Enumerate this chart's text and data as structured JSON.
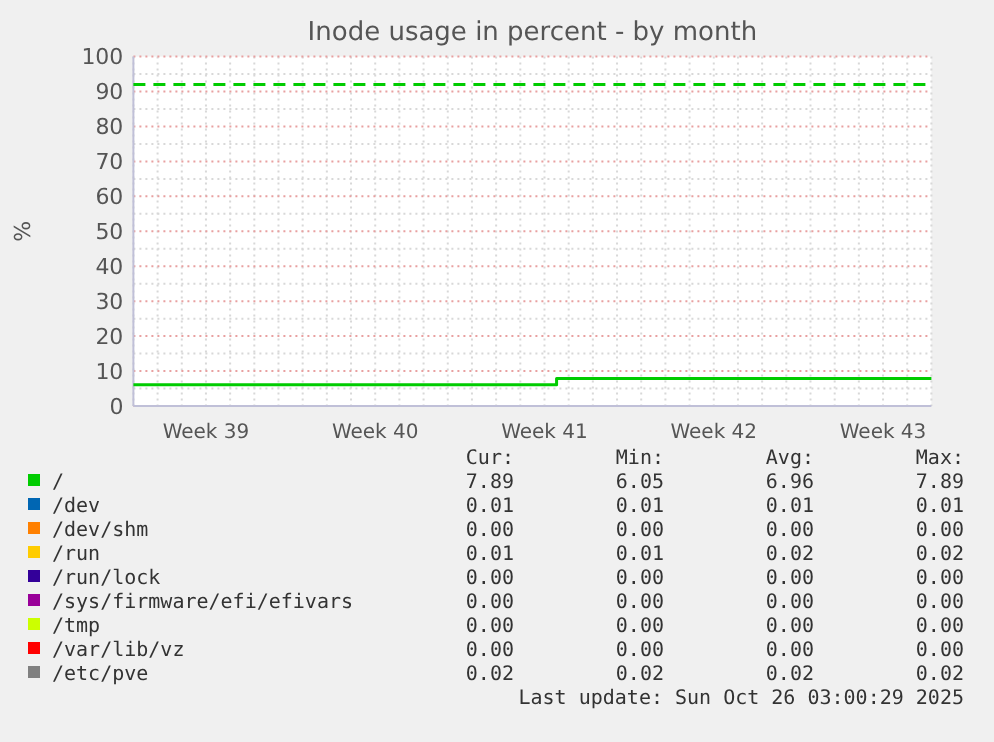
{
  "chart_data": {
    "type": "step",
    "title": "Inode usage in percent - by month",
    "ylabel": "%",
    "categories": [
      null,
      null,
      null,
      "Week 39",
      null,
      null,
      null,
      null,
      null,
      null,
      "Week 40",
      null,
      null,
      null,
      null,
      null,
      null,
      "Week 41",
      null,
      null,
      null,
      null,
      null,
      null,
      "Week 42",
      null,
      null,
      null,
      null,
      null,
      null,
      "Week 43",
      null,
      null
    ],
    "ylim": [
      0,
      100
    ],
    "yticks": [
      0,
      10,
      20,
      30,
      40,
      50,
      60,
      70,
      80,
      90,
      100
    ],
    "grid": true,
    "legend": "bottom",
    "marker": "none",
    "line_style": "solid",
    "series": [
      {
        "name": "/",
        "color": "#00cc00",
        "values": [
          6.05,
          6.05,
          6.05,
          6.05,
          6.05,
          6.05,
          6.05,
          6.05,
          6.05,
          6.05,
          6.05,
          6.05,
          6.05,
          6.05,
          6.05,
          6.05,
          6.05,
          6.05,
          7.89,
          7.89,
          7.89,
          7.89,
          7.89,
          7.89,
          7.89,
          7.89,
          7.89,
          7.89,
          7.89,
          7.89,
          7.89,
          7.89,
          7.89,
          7.89
        ]
      },
      {
        "name": "/dev",
        "color": "#0066b3",
        "values": [
          null,
          null,
          null,
          null,
          null,
          null,
          null,
          null,
          null,
          null,
          null,
          null,
          null,
          null,
          null,
          null,
          null,
          null,
          null,
          null,
          null,
          null,
          null,
          null,
          null,
          null,
          null,
          null,
          null,
          null,
          null,
          null,
          null,
          null
        ]
      },
      {
        "name": "/dev/shm",
        "color": "#ff8000",
        "values": [
          null,
          null,
          null,
          null,
          null,
          null,
          null,
          null,
          null,
          null,
          null,
          null,
          null,
          null,
          null,
          null,
          null,
          null,
          null,
          null,
          null,
          null,
          null,
          null,
          null,
          null,
          null,
          null,
          null,
          null,
          null,
          null,
          null,
          null
        ]
      },
      {
        "name": "/run",
        "color": "#ffcc00",
        "values": [
          null,
          null,
          null,
          null,
          null,
          null,
          null,
          null,
          null,
          null,
          null,
          null,
          null,
          null,
          null,
          null,
          null,
          null,
          null,
          null,
          null,
          null,
          null,
          null,
          null,
          null,
          null,
          null,
          null,
          null,
          null,
          null,
          null,
          null
        ]
      },
      {
        "name": "/run/lock",
        "color": "#330099",
        "values": [
          null,
          null,
          null,
          null,
          null,
          null,
          null,
          null,
          null,
          null,
          null,
          null,
          null,
          null,
          null,
          null,
          null,
          null,
          null,
          null,
          null,
          null,
          null,
          null,
          null,
          null,
          null,
          null,
          null,
          null,
          null,
          null,
          null,
          null
        ]
      },
      {
        "name": "/sys/firmware/efi/efivars",
        "color": "#990099",
        "values": [
          null,
          null,
          null,
          null,
          null,
          null,
          null,
          null,
          null,
          null,
          null,
          null,
          null,
          null,
          null,
          null,
          null,
          null,
          null,
          null,
          null,
          null,
          null,
          null,
          null,
          null,
          null,
          null,
          null,
          null,
          null,
          null,
          null,
          null
        ]
      },
      {
        "name": "/tmp",
        "color": "#ccff00",
        "values": [
          null,
          null,
          null,
          null,
          null,
          null,
          null,
          null,
          null,
          null,
          null,
          null,
          null,
          null,
          null,
          null,
          null,
          null,
          null,
          null,
          null,
          null,
          null,
          null,
          null,
          null,
          null,
          null,
          null,
          null,
          null,
          null,
          null,
          null
        ]
      },
      {
        "name": "/var/lib/vz",
        "color": "#ff0000",
        "values": [
          null,
          null,
          null,
          null,
          null,
          null,
          null,
          null,
          null,
          null,
          null,
          null,
          null,
          null,
          null,
          null,
          null,
          null,
          null,
          null,
          null,
          null,
          null,
          null,
          null,
          null,
          null,
          null,
          null,
          null,
          null,
          null,
          null,
          null
        ]
      },
      {
        "name": "/etc/pve",
        "color": "#808080",
        "values": [
          null,
          null,
          null,
          null,
          null,
          null,
          null,
          null,
          null,
          null,
          null,
          null,
          null,
          null,
          null,
          null,
          null,
          null,
          null,
          null,
          null,
          null,
          null,
          null,
          null,
          null,
          null,
          null,
          null,
          null,
          null,
          null,
          null,
          null
        ]
      }
    ],
    "ref_lines": [
      {
        "axis": "y",
        "value": 92,
        "color": "#00cc00",
        "line_style": "dashed"
      }
    ],
    "annotations": [
      "Cur:",
      "Min:",
      "Avg:",
      "Max:",
      "7.89",
      "6.05",
      "6.96",
      "7.89",
      "0.01",
      "0.01",
      "0.01",
      "0.01",
      "0.00",
      "0.00",
      "0.00",
      "0.00",
      "0.01",
      "0.01",
      "0.02",
      "0.02",
      "0.00",
      "0.00",
      "0.00",
      "0.00",
      "0.00",
      "0.00",
      "0.00",
      "0.00",
      "0.00",
      "0.00",
      "0.00",
      "0.00",
      "0.00",
      "0.00",
      "0.00",
      "0.00",
      "0.02",
      "0.02",
      "0.02",
      "0.02",
      "Last update: Sun Oct 26 03:00:29 2025"
    ]
  }
}
